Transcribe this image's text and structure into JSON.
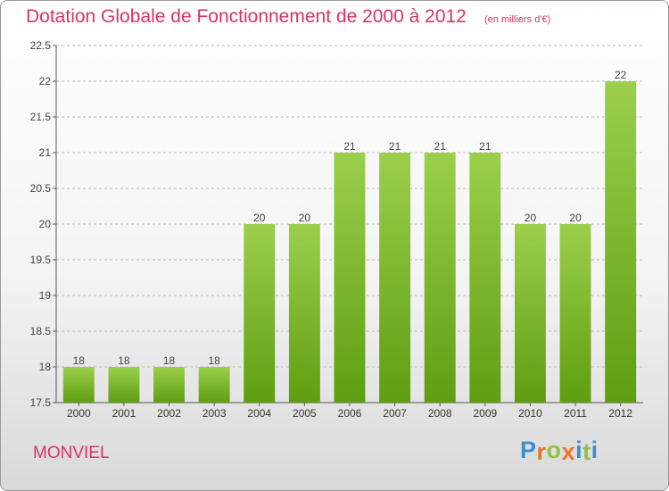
{
  "header": {
    "title": "Dotation Globale de Fonctionnement de 2000 à 2012",
    "unit": "(en milliers d'€)"
  },
  "footer": {
    "commune": "MONVIEL",
    "brand": "Proxiti"
  },
  "colors": {
    "title": "#d6336c",
    "bar_light": "#9ccf4c",
    "bar_dark": "#5e9e10",
    "grid": "#b8b8b8",
    "logo_letters": [
      "#3a8fd4",
      "#e8772a",
      "#8bc34a",
      "#e8772a",
      "#3a8fd4",
      "#8bc34a",
      "#3a8fd4"
    ]
  },
  "chart_data": {
    "type": "bar",
    "title": "Dotation Globale de Fonctionnement de 2000 à 2012",
    "subtitle": "(en milliers d'€)",
    "categories": [
      "2000",
      "2001",
      "2002",
      "2003",
      "2004",
      "2005",
      "2006",
      "2007",
      "2008",
      "2009",
      "2010",
      "2011",
      "2012"
    ],
    "values": [
      18,
      18,
      18,
      18,
      20,
      20,
      21,
      21,
      21,
      21,
      20,
      20,
      22
    ],
    "data_labels": [
      "18",
      "18",
      "18",
      "18",
      "20",
      "20",
      "21",
      "21",
      "21",
      "21",
      "20",
      "20",
      "22"
    ],
    "yticks": [
      17.5,
      18,
      18.5,
      19,
      19.5,
      20,
      20.5,
      21,
      21.5,
      22,
      22.5
    ],
    "ylim": [
      17.5,
      22.5
    ],
    "xlabel": "",
    "ylabel": "",
    "grid": true
  }
}
